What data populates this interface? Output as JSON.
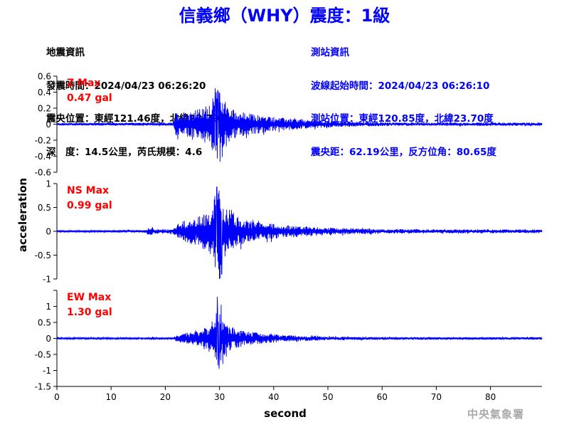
{
  "title": "信義鄉（WHY）震度：1級",
  "earthquake_info": {
    "heading": "地震資訊",
    "origin_time": "發震時間：2024/04/23 06:26:20",
    "epicenter": "震央位置：東經121.46度，北緯23.79度",
    "depth_magnitude": "深　度：14.5公里，芮氏規模：4.6"
  },
  "station_info": {
    "heading": "測站資訊",
    "wave_start": "波線起始時間：2024/04/23 06:26:10",
    "location": "測站位置：東經120.85度，北緯23.70度",
    "distance_azimuth": "震央距：62.19公里，反方位角：80.65度"
  },
  "watermark": "中央氣象署",
  "chart_data": {
    "type": "line",
    "xlabel": "second",
    "ylabel": "acceleration",
    "xlim": [
      0,
      89.5
    ],
    "xticks": [
      0,
      10,
      20,
      30,
      40,
      50,
      60,
      70,
      80
    ],
    "line_color": "#0000ff",
    "annotation_color": "#ff0000",
    "grid": false,
    "panels": [
      {
        "name": "Z",
        "max_label": "Z Max",
        "max_value": "0.47 gal",
        "ylim": [
          -0.6,
          0.6
        ],
        "yticks": [
          0.6,
          0.4,
          0.2,
          0,
          -0.2,
          -0.4,
          -0.6
        ],
        "ytick_labels": [
          "0.6",
          "0.4",
          "0.2",
          "0",
          "-0.2",
          "-0.4",
          "-0.6"
        ],
        "envelope": [
          [
            0,
            0.015
          ],
          [
            21.5,
            0.02
          ],
          [
            22,
            0.15
          ],
          [
            24,
            0.17
          ],
          [
            27,
            0.2
          ],
          [
            28.8,
            0.33
          ],
          [
            29.5,
            0.45
          ],
          [
            31,
            0.33
          ],
          [
            32,
            0.2
          ],
          [
            35,
            0.14
          ],
          [
            40,
            0.09
          ],
          [
            45,
            0.06
          ],
          [
            50,
            0.04
          ],
          [
            55,
            0.03
          ],
          [
            65,
            0.02
          ],
          [
            89.5,
            0.02
          ]
        ],
        "peaks": [
          [
            29.2,
            0.45
          ],
          [
            30.1,
            -0.47
          ],
          [
            29.7,
            0.42
          ],
          [
            30.5,
            -0.41
          ]
        ]
      },
      {
        "name": "NS",
        "max_label": "NS Max",
        "max_value": "0.99 gal",
        "ylim": [
          -1,
          1
        ],
        "yticks": [
          1,
          0.5,
          0,
          -0.5,
          -1
        ],
        "ytick_labels": [
          "1",
          "0.5",
          "0",
          "-0.5",
          "-1"
        ],
        "envelope": [
          [
            0,
            0.02
          ],
          [
            16.5,
            0.03
          ],
          [
            17.2,
            0.12
          ],
          [
            18,
            0.05
          ],
          [
            21.5,
            0.05
          ],
          [
            22.5,
            0.2
          ],
          [
            26,
            0.3
          ],
          [
            28.5,
            0.55
          ],
          [
            29.6,
            0.9
          ],
          [
            31,
            0.55
          ],
          [
            33,
            0.32
          ],
          [
            36,
            0.22
          ],
          [
            42,
            0.14
          ],
          [
            50,
            0.08
          ],
          [
            58,
            0.05
          ],
          [
            70,
            0.04
          ],
          [
            89.5,
            0.04
          ]
        ],
        "peaks": [
          [
            29.5,
            0.93
          ],
          [
            30.1,
            -0.99
          ],
          [
            29.9,
            0.85
          ],
          [
            30.4,
            -0.9
          ]
        ]
      },
      {
        "name": "EW",
        "max_label": "EW Max",
        "max_value": "1.30 gal",
        "ylim": [
          -1.5,
          1.5
        ],
        "yticks": [
          1.5,
          1,
          0.5,
          0,
          -0.5,
          -1,
          -1.5
        ],
        "ytick_labels": [
          "",
          "1",
          "0.5",
          "0",
          "-0.5",
          "-1",
          "-1.5"
        ],
        "envelope": [
          [
            0,
            0.025
          ],
          [
            17,
            0.03
          ],
          [
            17.5,
            0.06
          ],
          [
            18,
            0.03
          ],
          [
            21.5,
            0.04
          ],
          [
            22.5,
            0.14
          ],
          [
            26,
            0.22
          ],
          [
            28.5,
            0.5
          ],
          [
            29.7,
            1.0
          ],
          [
            31,
            0.48
          ],
          [
            33,
            0.3
          ],
          [
            36,
            0.2
          ],
          [
            42,
            0.1
          ],
          [
            50,
            0.06
          ],
          [
            60,
            0.04
          ],
          [
            89.5,
            0.04
          ]
        ],
        "peaks": [
          [
            29.6,
            1.3
          ],
          [
            29.9,
            -0.95
          ],
          [
            30.3,
            1.05
          ],
          [
            30.6,
            -0.8
          ]
        ]
      }
    ]
  }
}
